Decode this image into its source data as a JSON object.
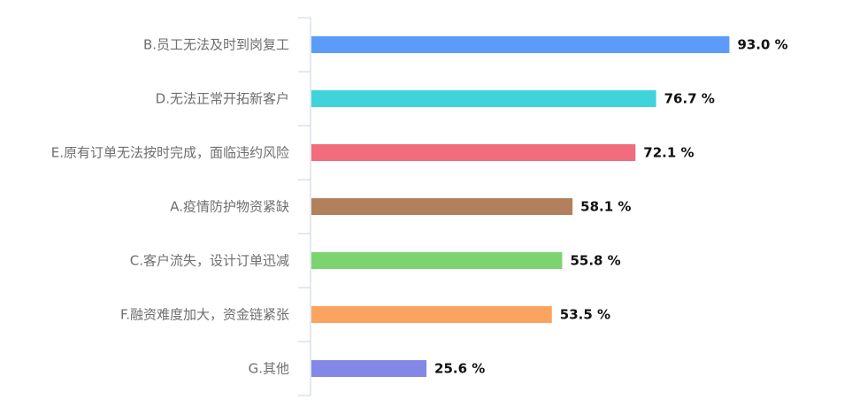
{
  "chart_data": {
    "type": "bar",
    "orientation": "horizontal",
    "categories": [
      "B.员工无法及时到岗复工",
      "D.无法正常开拓新客户",
      "E.原有订单无法按时完成，面临违约风险",
      "A.疫情防护物资紧缺",
      "C.客户流失，设计订单迅减",
      "F.融资难度加大，资金链紧张",
      "G.其他"
    ],
    "values": [
      93.0,
      76.7,
      72.1,
      58.1,
      55.8,
      53.5,
      25.6
    ],
    "value_labels": [
      "93.0 %",
      "76.7 %",
      "72.1 %",
      "58.1 %",
      "55.8 %",
      "53.5 %",
      "25.6 %"
    ],
    "colors": [
      "#5b9cfb",
      "#3fd4da",
      "#f16c7c",
      "#b3805d",
      "#7bd46f",
      "#fba45f",
      "#8388e8"
    ],
    "xlim": [
      0,
      100
    ],
    "grid": false,
    "legend": "none"
  }
}
